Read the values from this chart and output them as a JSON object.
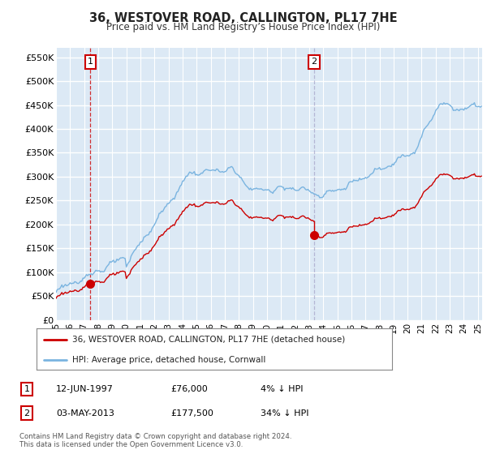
{
  "title": "36, WESTOVER ROAD, CALLINGTON, PL17 7HE",
  "subtitle": "Price paid vs. HM Land Registry’s House Price Index (HPI)",
  "ylabel_ticks": [
    "£0",
    "£50K",
    "£100K",
    "£150K",
    "£200K",
    "£250K",
    "£300K",
    "£350K",
    "£400K",
    "£450K",
    "£500K",
    "£550K"
  ],
  "ytick_values": [
    0,
    50000,
    100000,
    150000,
    200000,
    250000,
    300000,
    350000,
    400000,
    450000,
    500000,
    550000
  ],
  "xlim_start": 1995.0,
  "xlim_end": 2025.3,
  "ylim_min": 0,
  "ylim_max": 570000,
  "purchase1_year": 1997.45,
  "purchase1_value": 76000,
  "purchase1_label": "1",
  "purchase2_year": 2013.34,
  "purchase2_value": 177500,
  "purchase2_label": "2",
  "bg_color": "#dce9f5",
  "grid_color": "#ffffff",
  "hpi_line_color": "#7ab4e0",
  "price_line_color": "#cc0000",
  "vline1_color": "#cc0000",
  "vline2_color": "#aaaacc",
  "legend_entries": [
    "36, WESTOVER ROAD, CALLINGTON, PL17 7HE (detached house)",
    "HPI: Average price, detached house, Cornwall"
  ],
  "annotation1_date": "12-JUN-1997",
  "annotation1_price": "£76,000",
  "annotation1_hpi": "4% ↓ HPI",
  "annotation2_date": "03-MAY-2013",
  "annotation2_price": "£177,500",
  "annotation2_hpi": "34% ↓ HPI",
  "footer": "Contains HM Land Registry data © Crown copyright and database right 2024.\nThis data is licensed under the Open Government Licence v3.0."
}
